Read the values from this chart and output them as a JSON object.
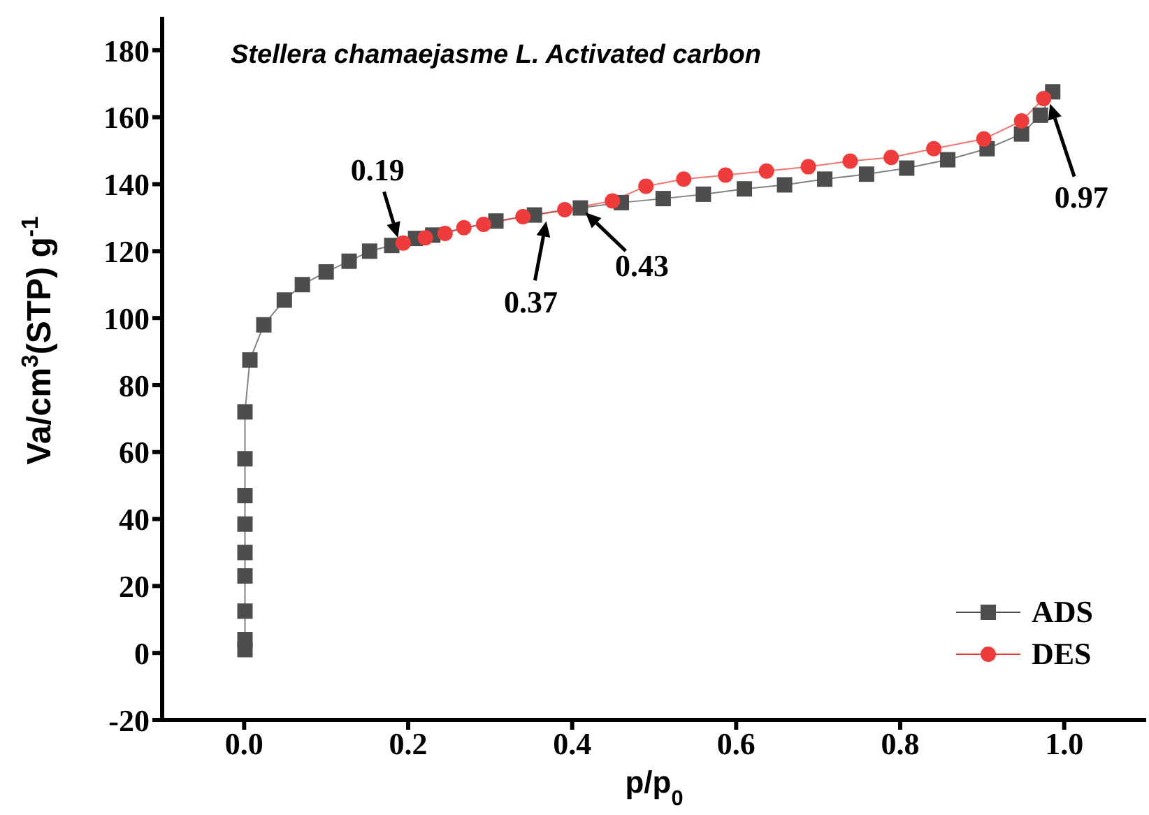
{
  "chart_data": {
    "type": "line",
    "title": "Stellera chamaejasme L. Activated carbon",
    "xlabel": "p/p$_{0}$",
    "ylabel": "Va/cm$^{3}$(STP) g$^{-1}$",
    "xlim": [
      -0.1,
      1.1
    ],
    "xticks": [
      {
        "value": 0,
        "label": "0.0"
      },
      0.2,
      0.4,
      0.6,
      0.8,
      {
        "value": 1,
        "label": "1.0"
      }
    ],
    "ylim": [
      -20,
      190
    ],
    "yticks": [
      -20,
      0,
      20,
      40,
      60,
      80,
      100,
      120,
      140,
      160,
      180
    ],
    "grid": false,
    "legend": "bottom right",
    "line_style": "solid",
    "series": [
      {
        "name": "ADS",
        "color": "#4d4d4d",
        "marker": "square",
        "x": [
          0.001,
          0.001,
          0.001,
          0.001,
          0.001,
          0.001,
          0.001,
          0.001,
          0.001,
          0.007,
          0.024,
          0.049,
          0.071,
          0.1,
          0.128,
          0.153,
          0.18,
          0.209,
          0.23,
          0.307,
          0.354,
          0.41,
          0.46,
          0.511,
          0.56,
          0.61,
          0.659,
          0.708,
          0.759,
          0.808,
          0.858,
          0.906,
          0.948,
          0.971,
          0.986
        ],
        "values": [
          1,
          4,
          12.5,
          23,
          30,
          38.5,
          47,
          58,
          72,
          87.5,
          98,
          105.4,
          110,
          113.8,
          117,
          120,
          121.7,
          123.8,
          124.8,
          129,
          130.8,
          132.9,
          134.5,
          135.7,
          137,
          138.6,
          139.8,
          141.5,
          143,
          144.8,
          147.3,
          150.6,
          155,
          160.6,
          167.6
        ]
      },
      {
        "name": "DES",
        "color": "#ee3b3b",
        "marker": "circle",
        "x": [
          0.194,
          0.221,
          0.245,
          0.268,
          0.292,
          0.34,
          0.391,
          0.449,
          0.49,
          0.536,
          0.587,
          0.637,
          0.688,
          0.739,
          0.789,
          0.841,
          0.902,
          0.948,
          0.975
        ],
        "values": [
          122.4,
          124,
          125.3,
          127,
          128,
          130.3,
          132.4,
          135,
          139.4,
          141.5,
          142.7,
          143.9,
          145.2,
          146.9,
          148,
          150.6,
          153.5,
          158.9,
          165.6
        ]
      }
    ],
    "annotations": [
      {
        "text": "0.19",
        "x": 0.19,
        "y": 122
      },
      {
        "text": "0.37",
        "x": 0.37,
        "y": 131
      },
      {
        "text": "0.43",
        "x": 0.41,
        "y": 133
      },
      {
        "text": "0.97",
        "x": 0.98,
        "y": 166
      }
    ]
  }
}
